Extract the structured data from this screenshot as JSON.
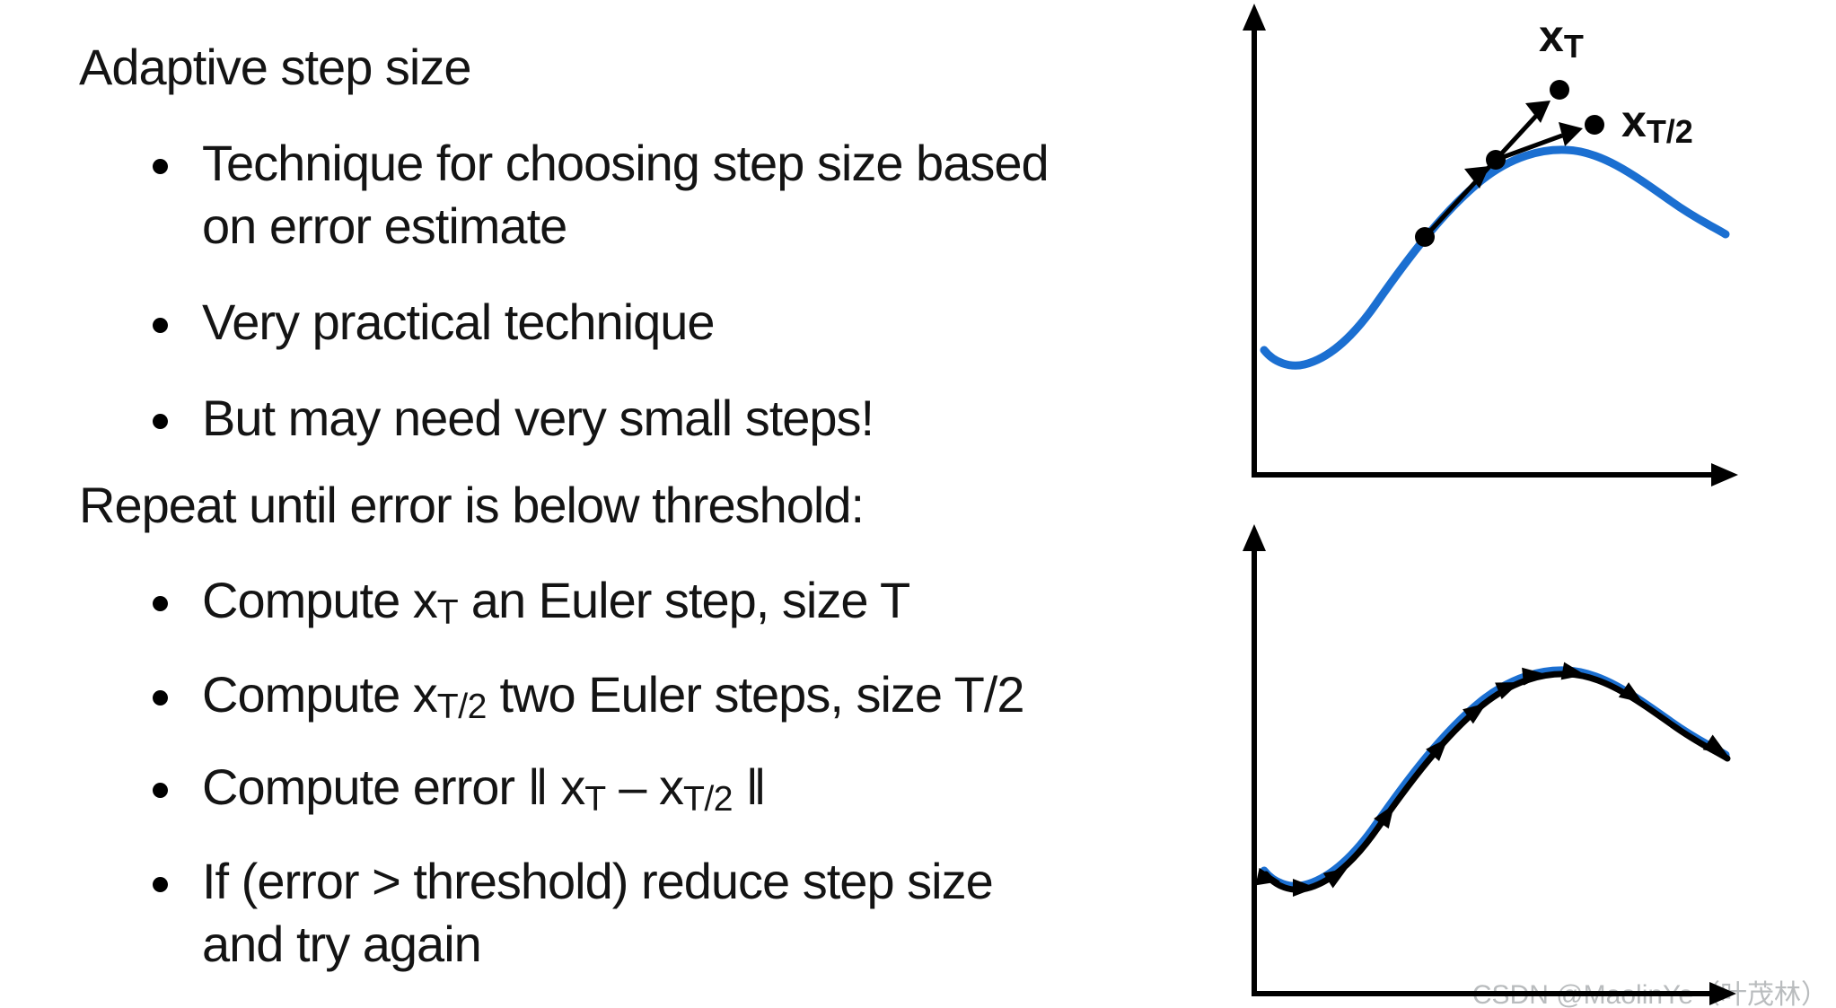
{
  "slide": {
    "title": "Adaptive step size",
    "repeat_heading": "Repeat until error is below threshold:",
    "bullets": [
      {
        "segments": [
          {
            "t": "Technique for choosing step size based"
          },
          {
            "br": true
          },
          {
            "t": "on error estimate"
          }
        ]
      },
      {
        "segments": [
          {
            "t": "Very practical technique"
          }
        ]
      },
      {
        "segments": [
          {
            "t": "But may need very small steps!"
          }
        ]
      },
      {
        "segments": [
          {
            "t": "Compute x"
          },
          {
            "sub": "T"
          },
          {
            "t": " an Euler step, size T"
          }
        ]
      },
      {
        "segments": [
          {
            "t": "Compute x"
          },
          {
            "sub": "T/2"
          },
          {
            "t": " two Euler steps, size T/2"
          }
        ]
      },
      {
        "segments": [
          {
            "t": "Compute error ‖ x"
          },
          {
            "sub": "T"
          },
          {
            "t": " – x"
          },
          {
            "sub": "T/2"
          },
          {
            "t": " ‖"
          }
        ]
      },
      {
        "segments": [
          {
            "t": "If (error > threshold) reduce step size"
          },
          {
            "br": true
          },
          {
            "t": "and try again"
          }
        ]
      }
    ]
  },
  "top_chart": {
    "type": "line",
    "xt_label": {
      "base": "x",
      "sub": "T"
    },
    "xt2_label": {
      "base": "x",
      "sub": "T/2"
    },
    "annotations": [
      "one Euler step of size T overshoots to xT",
      "two half steps of size T/2 reach xT/2"
    ]
  },
  "bottom_chart": {
    "type": "line",
    "annotations": [
      "many small Euler steps closely tracking the curve"
    ]
  },
  "watermark": {
    "text": "CSDN @MaolinYe（叶茂林）"
  },
  "colors": {
    "curve_blue": "#1b6fd1",
    "ink_black": "#000000",
    "text_color": "#141414",
    "watermark_gray": "#b9bcbe",
    "background": "#ffffff"
  }
}
